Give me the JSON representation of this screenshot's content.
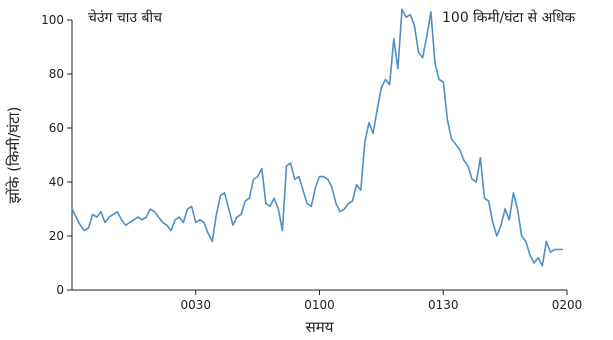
{
  "chart_data": {
    "type": "line",
    "xlabel": "समय",
    "ylabel": "झोंके (किमी/घंटा)",
    "xlim": [
      "00:00",
      "02:00"
    ],
    "ylim": [
      0,
      100
    ],
    "x_ticks": [
      "0030",
      "0100",
      "0130",
      "0200"
    ],
    "y_ticks": [
      "0",
      "20",
      "40",
      "60",
      "80",
      "100"
    ],
    "grid": false,
    "line_color": "#4f8fc6",
    "annotations": [
      {
        "text": "चेउंग चाउ बीच"
      },
      {
        "text": "100 किमी/घंटा से अधिक"
      }
    ],
    "series": [
      {
        "x": [
          "00:00",
          "00:01",
          "00:02",
          "00:03",
          "00:04",
          "00:05",
          "00:06",
          "00:07",
          "00:08",
          "00:09",
          "00:10",
          "00:11",
          "00:12",
          "00:13",
          "00:14",
          "00:15",
          "00:16",
          "00:17",
          "00:18",
          "00:19",
          "00:20",
          "00:21",
          "00:22",
          "00:23",
          "00:24",
          "00:25",
          "00:26",
          "00:27",
          "00:28",
          "00:29",
          "00:30",
          "00:31",
          "00:32",
          "00:33",
          "00:34",
          "00:35",
          "00:36",
          "00:37",
          "00:38",
          "00:39",
          "00:40",
          "00:41",
          "00:42",
          "00:43",
          "00:44",
          "00:45",
          "00:46",
          "00:47",
          "00:48",
          "00:49",
          "00:50",
          "00:51",
          "00:52",
          "00:53",
          "00:54",
          "00:55",
          "00:56",
          "00:57",
          "00:58",
          "00:59",
          "01:00",
          "01:01",
          "01:02",
          "01:03",
          "01:04",
          "01:05",
          "01:06",
          "01:07",
          "01:08",
          "01:09",
          "01:10",
          "01:11",
          "01:12",
          "01:13",
          "01:14",
          "01:15",
          "01:16",
          "01:17",
          "01:18",
          "01:19",
          "01:20",
          "01:21",
          "01:22",
          "01:23",
          "01:24",
          "01:25",
          "01:26",
          "01:27",
          "01:28",
          "01:29",
          "01:30",
          "01:31",
          "01:32",
          "01:33",
          "01:34",
          "01:35",
          "01:36",
          "01:37",
          "01:38",
          "01:39",
          "01:40",
          "01:41",
          "01:42",
          "01:43",
          "01:44",
          "01:45",
          "01:46",
          "01:47",
          "01:48",
          "01:49",
          "01:50",
          "01:51",
          "01:52",
          "01:53",
          "01:54",
          "01:55",
          "01:56",
          "01:57",
          "01:58",
          "01:59"
        ],
        "values": [
          30,
          27,
          24,
          22,
          23,
          28,
          27,
          29,
          25,
          27,
          28,
          29,
          26,
          24,
          25,
          26,
          27,
          26,
          27,
          30,
          29,
          27,
          25,
          24,
          22,
          26,
          27,
          25,
          30,
          31,
          25,
          26,
          25,
          21,
          18,
          28,
          35,
          36,
          30,
          24,
          27,
          28,
          33,
          34,
          41,
          42,
          45,
          32,
          31,
          34,
          30,
          22,
          46,
          47,
          41,
          42,
          37,
          32,
          31,
          38,
          42,
          42,
          41,
          38,
          32,
          29,
          30,
          32,
          33,
          39,
          37,
          55,
          62,
          58,
          67,
          75,
          78,
          76,
          93,
          82,
          104,
          101,
          102,
          98,
          88,
          86,
          94,
          103,
          84,
          78,
          77,
          63,
          56,
          54,
          52,
          48,
          46,
          41,
          40,
          49,
          34,
          33,
          25,
          20,
          24,
          30,
          26,
          36,
          30,
          20,
          18,
          13,
          10,
          12,
          9,
          18,
          14,
          15,
          15,
          15
        ]
      }
    ]
  }
}
